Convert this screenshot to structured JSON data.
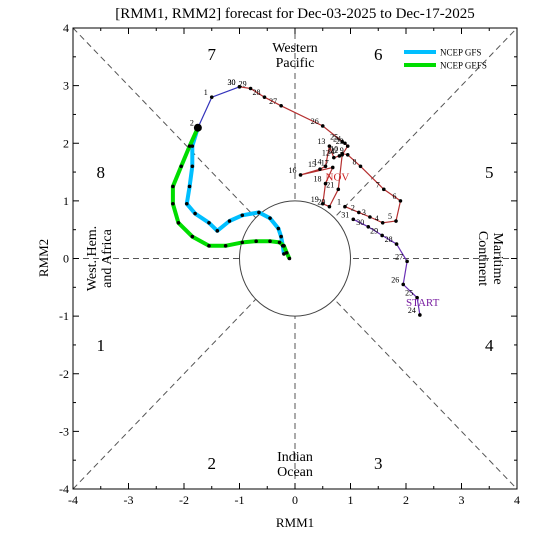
{
  "chart_data": {
    "type": "line",
    "title": "[RMM1, RMM2] forecast for Dec-03-2025 to Dec-17-2025",
    "xlabel": "RMM1",
    "ylabel": "RMM2",
    "xlim": [
      -4,
      4
    ],
    "ylim": [
      -4,
      4
    ],
    "xticks": [
      "-4",
      "-3",
      "-2",
      "-1",
      "0",
      "1",
      "2",
      "3",
      "4"
    ],
    "yticks": [
      "-4",
      "-3",
      "-2",
      "-1",
      "0",
      "1",
      "2",
      "3",
      "4"
    ],
    "legend_position": "top-right",
    "phase_labels": [
      {
        "text": "1",
        "x": -3.5,
        "y": -1.5
      },
      {
        "text": "2",
        "x": -1.5,
        "y": -3.55
      },
      {
        "text": "3",
        "x": 1.5,
        "y": -3.55
      },
      {
        "text": "4",
        "x": 3.5,
        "y": -1.5
      },
      {
        "text": "5",
        "x": 3.5,
        "y": 1.5
      },
      {
        "text": "6",
        "x": 1.5,
        "y": 3.55
      },
      {
        "text": "7",
        "x": -1.5,
        "y": 3.55
      },
      {
        "text": "8",
        "x": -3.5,
        "y": 1.5
      }
    ],
    "region_labels": [
      {
        "id": "western-pacific",
        "lines": [
          "Western",
          "Pacific"
        ],
        "x": 0,
        "y": 3.55,
        "rotate": 0
      },
      {
        "id": "indian-ocean",
        "lines": [
          "Indian",
          "Ocean"
        ],
        "x": 0,
        "y": -3.55,
        "rotate": 0
      },
      {
        "id": "west-hem-africa",
        "lines": [
          "West. Hem.",
          "and Africa"
        ],
        "x": -3.55,
        "y": 0,
        "rotate": -90
      },
      {
        "id": "maritime-continent",
        "lines": [
          "Maritime",
          "Continent"
        ],
        "x": 3.55,
        "y": 0,
        "rotate": 90
      }
    ],
    "month_labels": [
      {
        "text": "START",
        "x": 2.0,
        "y": -0.82,
        "color": "#7a1fa2"
      },
      {
        "text": "NOV",
        "x": 0.55,
        "y": 1.35,
        "color": "#cc2222"
      }
    ],
    "observed_segments": [
      {
        "id": "purple-start",
        "color": "#6a2fb5",
        "points": [
          {
            "label": "24",
            "x": 2.25,
            "y": -0.98
          },
          {
            "label": "25",
            "x": 2.2,
            "y": -0.68
          },
          {
            "label": "26",
            "x": 1.95,
            "y": -0.45
          },
          {
            "label": "27",
            "x": 2.02,
            "y": -0.05
          },
          {
            "label": "28",
            "x": 1.83,
            "y": 0.25
          },
          {
            "label": "29",
            "x": 1.57,
            "y": 0.4
          },
          {
            "label": "30",
            "x": 1.32,
            "y": 0.55
          },
          {
            "label": "31",
            "x": 1.05,
            "y": 0.68
          }
        ]
      },
      {
        "id": "red-month",
        "color": "#b53030",
        "points": [
          {
            "label": "1",
            "x": 0.9,
            "y": 0.9
          },
          {
            "label": "2",
            "x": 1.15,
            "y": 0.8
          },
          {
            "label": "3",
            "x": 1.35,
            "y": 0.72
          },
          {
            "label": "4",
            "x": 1.58,
            "y": 0.62
          },
          {
            "label": "5",
            "x": 1.82,
            "y": 0.65
          },
          {
            "label": "6",
            "x": 1.9,
            "y": 1.0
          },
          {
            "label": "7",
            "x": 1.6,
            "y": 1.2
          },
          {
            "label": "8",
            "x": 1.18,
            "y": 1.6
          },
          {
            "label": "9",
            "x": 0.95,
            "y": 1.8
          },
          {
            "label": "10",
            "x": 0.85,
            "y": 1.82
          },
          {
            "label": "11",
            "x": 0.8,
            "y": 1.78
          },
          {
            "label": "12",
            "x": 0.7,
            "y": 1.75
          },
          {
            "label": "13",
            "x": 0.62,
            "y": 1.95
          },
          {
            "label": "14",
            "x": 0.55,
            "y": 1.6
          },
          {
            "label": "15",
            "x": 0.45,
            "y": 1.55
          },
          {
            "label": "16",
            "x": 0.1,
            "y": 1.45
          },
          {
            "label": "17",
            "x": 0.68,
            "y": 1.58
          },
          {
            "label": "18",
            "x": 0.55,
            "y": 1.3
          },
          {
            "label": "19",
            "x": 0.5,
            "y": 0.95
          },
          {
            "label": "20",
            "x": 0.62,
            "y": 0.9
          },
          {
            "label": "21",
            "x": 0.78,
            "y": 1.2
          },
          {
            "label": "22",
            "x": 0.85,
            "y": 1.8
          },
          {
            "label": "23",
            "x": 0.95,
            "y": 1.95
          },
          {
            "label": "24",
            "x": 0.9,
            "y": 2.0
          },
          {
            "label": "25",
            "x": 0.85,
            "y": 2.03
          },
          {
            "label": "26",
            "x": 0.5,
            "y": 2.3
          },
          {
            "label": "27",
            "x": -0.25,
            "y": 2.65
          },
          {
            "label": "28",
            "x": -0.55,
            "y": 2.8
          },
          {
            "label": "29",
            "x": -0.8,
            "y": 2.95
          },
          {
            "label": "30",
            "x": -1.0,
            "y": 2.98
          }
        ]
      },
      {
        "id": "blue-recent",
        "color": "#3333bb",
        "points": [
          {
            "label": "30",
            "x": -1.0,
            "y": 2.98
          },
          {
            "label": "1",
            "x": -1.5,
            "y": 2.8
          },
          {
            "label": "2",
            "x": -1.75,
            "y": 2.27
          }
        ]
      }
    ],
    "series": [
      {
        "name": "NCEP GFS",
        "color": "#00bfff",
        "x": [
          -1.75,
          -1.85,
          -1.85,
          -1.9,
          -1.95,
          -1.8,
          -1.55,
          -1.4,
          -1.18,
          -0.95,
          -0.65,
          -0.45,
          -0.3,
          -0.25,
          -0.22,
          -0.2
        ],
        "y": [
          2.27,
          1.95,
          1.6,
          1.25,
          0.95,
          0.78,
          0.62,
          0.48,
          0.65,
          0.75,
          0.8,
          0.7,
          0.52,
          0.38,
          0.22,
          0.08
        ]
      },
      {
        "name": "NCEP GEFS",
        "color": "#00dd00",
        "x": [
          -1.75,
          -1.9,
          -2.05,
          -2.2,
          -2.2,
          -2.1,
          -1.85,
          -1.55,
          -1.25,
          -0.95,
          -0.7,
          -0.45,
          -0.28,
          -0.2,
          -0.15,
          -0.1
        ],
        "y": [
          2.27,
          1.95,
          1.6,
          1.25,
          0.95,
          0.62,
          0.38,
          0.22,
          0.22,
          0.28,
          0.3,
          0.3,
          0.28,
          0.22,
          0.1,
          0.0
        ]
      }
    ],
    "forecast_start": {
      "x": -1.75,
      "y": 2.27
    }
  }
}
